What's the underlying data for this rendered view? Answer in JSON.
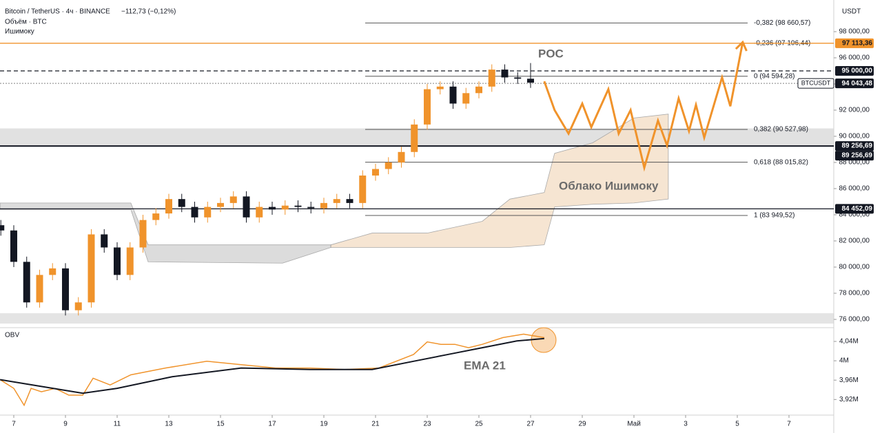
{
  "chart_data": [
    {
      "type": "candlestick",
      "title": "Bitcoin / TetherUS · 4ч · BINANCE",
      "subtitle": "−112,73 (−0,12%)",
      "indicators": [
        "Объём · BTC",
        "Ишимоку"
      ],
      "y_axis_label": "USDT",
      "annotations": [
        "POC",
        "Облако Ишимоку"
      ],
      "color_up": "#f0932b",
      "color_down": "#131722",
      "x": [
        6.5,
        7,
        7.5,
        8,
        8.5,
        9,
        9.5,
        10,
        10.5,
        11,
        11.5,
        12,
        12.5,
        13,
        13.5,
        14,
        14.5,
        15,
        15.5,
        16,
        16.5,
        17,
        17.5,
        18,
        18.5,
        19,
        19.5,
        20,
        20.5,
        21,
        21.5,
        22,
        22.5,
        23,
        23.5,
        24,
        24.5,
        25,
        25.5,
        26,
        26.5,
        27
      ],
      "open": [
        83200,
        82800,
        80400,
        77300,
        79400,
        79900,
        76700,
        77300,
        82500,
        81500,
        79400,
        81500,
        83600,
        84100,
        85200,
        84600,
        83800,
        84600,
        84900,
        85400,
        83800,
        84600,
        84400,
        84700,
        84600,
        84500,
        84900,
        85200,
        84900,
        87000,
        87500,
        88000,
        88800,
        90900,
        93600,
        93800,
        92500,
        93300,
        93800,
        95100,
        94500,
        94400
      ],
      "high": [
        83600,
        83200,
        80800,
        79800,
        80300,
        80300,
        77700,
        82900,
        82900,
        81900,
        81900,
        84000,
        84500,
        85600,
        85600,
        85000,
        85000,
        85300,
        85800,
        85800,
        85000,
        85000,
        85100,
        85100,
        85000,
        85300,
        85600,
        85600,
        87400,
        87900,
        88400,
        89200,
        91300,
        94000,
        94200,
        94200,
        93700,
        94200,
        95500,
        95500,
        94900,
        95600
      ],
      "low": [
        82400,
        80000,
        76900,
        76900,
        79000,
        76300,
        76300,
        76900,
        81100,
        79000,
        79000,
        81100,
        83200,
        83700,
        84200,
        83400,
        83400,
        84200,
        84500,
        83400,
        83400,
        84000,
        84000,
        84200,
        84100,
        84100,
        84500,
        84500,
        84500,
        86600,
        87100,
        87600,
        88400,
        90500,
        93200,
        92100,
        92100,
        92900,
        93400,
        94100,
        94000,
        93700
      ],
      "close": [
        82800,
        80400,
        77300,
        79400,
        79900,
        76700,
        77300,
        82500,
        81500,
        79400,
        81500,
        83600,
        84100,
        85200,
        84600,
        83800,
        84600,
        84900,
        85400,
        83800,
        84600,
        84400,
        84700,
        84600,
        84500,
        84900,
        85200,
        84900,
        87000,
        87500,
        88000,
        88800,
        90900,
        93600,
        93800,
        92500,
        93300,
        93800,
        95100,
        94500,
        94400,
        94100
      ],
      "xlim": [
        6.467,
        38.733
      ],
      "xticks": [
        7,
        9,
        11,
        13,
        15,
        17,
        19,
        21,
        23,
        25,
        27,
        29,
        {
          "value": 31,
          "label": "Май"
        },
        {
          "value": 33,
          "label": "3"
        },
        {
          "value": 35,
          "label": "5"
        },
        {
          "value": 37,
          "label": "7"
        }
      ],
      "ylim": [
        75420,
        100420
      ],
      "yticks": [
        {
          "value": 76000,
          "label": "76 000,00"
        },
        {
          "value": 78000,
          "label": "78 000,00"
        },
        {
          "value": 80000,
          "label": "80 000,00"
        },
        {
          "value": 82000,
          "label": "82 000,00"
        },
        {
          "value": 84000,
          "label": "84 000,00"
        },
        {
          "value": 86000,
          "label": "86 000,00"
        },
        {
          "value": 88000,
          "label": "88 000,00"
        },
        {
          "value": 90000,
          "label": "90 000,00"
        },
        {
          "value": 92000,
          "label": "92 000,00"
        },
        {
          "value": 94000,
          "label": "94 000,00"
        },
        {
          "value": 96000,
          "label": "96 000,00"
        },
        {
          "value": 98000,
          "label": "98 000,00"
        }
      ],
      "zone": [
        89256.69,
        90600
      ],
      "levels": [
        {
          "value": 97113.36,
          "label": "97 113,36",
          "color": "#f0932b",
          "style": "solid"
        },
        {
          "value": 95000,
          "label": "95 000,00",
          "color": "#131722",
          "style": "dashed"
        },
        {
          "value": 94043.48,
          "label": "94 043,48",
          "tag": "BTCUSDT",
          "color": "#9a9a9a",
          "style": "dotted"
        },
        {
          "value": 89256.69,
          "label": "89 256,69",
          "color": "#131722",
          "style": "thick"
        },
        {
          "value": 89256.69,
          "label": "89 256,69",
          "color": "#131722",
          "style": "thick"
        },
        {
          "value": 84452.09,
          "label": "84 452,09",
          "color": "#131722",
          "style": "solid"
        }
      ],
      "fib": [
        {
          "value": 98660.57,
          "label": "-0,382 (98 660,57)"
        },
        {
          "value": 97106.44,
          "label": "-0,236 (97 106,44)"
        },
        {
          "value": 94594.28,
          "label": "0 (94 594,28)"
        },
        {
          "value": 90527.98,
          "label": "0,382 (90 527,98)"
        },
        {
          "value": 88015.82,
          "label": "0,618 (88 015,82)"
        },
        {
          "value": 83949.52,
          "label": "1 (83 949,52)"
        }
      ],
      "clouds": [
        {
          "color": "#d6d6d6",
          "x": [
            6.47,
            11.53,
            12.2,
            17.4,
            19.27
          ],
          "upper": [
            84900,
            84900,
            81700,
            81700,
            81700
          ],
          "lower": [
            84400,
            84400,
            80400,
            80300,
            81500
          ]
        },
        {
          "color": "#f5e1cb",
          "x": [
            19.27,
            20.87,
            23.0,
            25.13,
            26.2,
            27.53,
            27.93,
            29.4,
            31.0,
            32.33
          ],
          "upper": [
            81700,
            82600,
            82600,
            83500,
            85200,
            85700,
            88700,
            89500,
            91400,
            91700
          ],
          "lower": [
            81500,
            81500,
            81500,
            81500,
            81500,
            81700,
            84600,
            84800,
            84900,
            85200
          ]
        }
      ],
      "forecast": {
        "color": "#f0932b",
        "x": [
          27.53,
          27.93,
          28.47,
          29.0,
          29.35,
          30.01,
          30.41,
          30.87,
          31.4,
          31.93,
          32.28,
          32.73,
          33.13,
          33.4,
          33.72,
          34.41,
          34.73,
          35.21
        ],
        "values": [
          94200,
          92000,
          90200,
          92500,
          90700,
          93600,
          90200,
          92000,
          87600,
          91200,
          89300,
          92900,
          90400,
          92400,
          89900,
          94500,
          92300,
          97200
        ]
      }
    },
    {
      "type": "line",
      "xlim": [
        6.467,
        38.733
      ],
      "ylim": [
        3.892,
        4.067
      ],
      "yticks": [
        {
          "value": 3.92,
          "label": "3,92M"
        },
        {
          "value": 3.96,
          "label": "3,96M"
        },
        {
          "value": 4,
          "label": "4M"
        },
        {
          "value": 4.04,
          "label": "4,04M"
        }
      ],
      "series": [
        {
          "name": "OBV",
          "color": "#f0932b",
          "x": [
            6.47,
            7.0,
            7.4,
            7.67,
            8.07,
            8.6,
            9.13,
            9.67,
            10.07,
            10.73,
            11.53,
            12.87,
            14.47,
            15.8,
            17.13,
            18.47,
            19.8,
            21.13,
            22.47,
            23.0,
            23.53,
            24.07,
            24.6,
            25.13,
            25.93,
            26.73,
            27.53
          ],
          "values": [
            3.961,
            3.943,
            3.908,
            3.943,
            3.936,
            3.943,
            3.929,
            3.929,
            3.964,
            3.95,
            3.971,
            3.985,
            3.999,
            3.992,
            3.985,
            3.985,
            3.982,
            3.985,
            4.013,
            4.039,
            4.034,
            4.034,
            4.027,
            4.034,
            4.048,
            4.055,
            4.048
          ]
        },
        {
          "name": "EMA 21",
          "color": "#131722",
          "x": [
            6.47,
            8.07,
            9.67,
            11.0,
            13.13,
            15.8,
            18.47,
            20.87,
            22.47,
            23.8,
            25.13,
            26.47,
            27.53
          ],
          "values": [
            3.961,
            3.947,
            3.933,
            3.943,
            3.967,
            3.985,
            3.982,
            3.982,
            3.999,
            4.013,
            4.027,
            4.041,
            4.046
          ]
        }
      ]
    }
  ]
}
